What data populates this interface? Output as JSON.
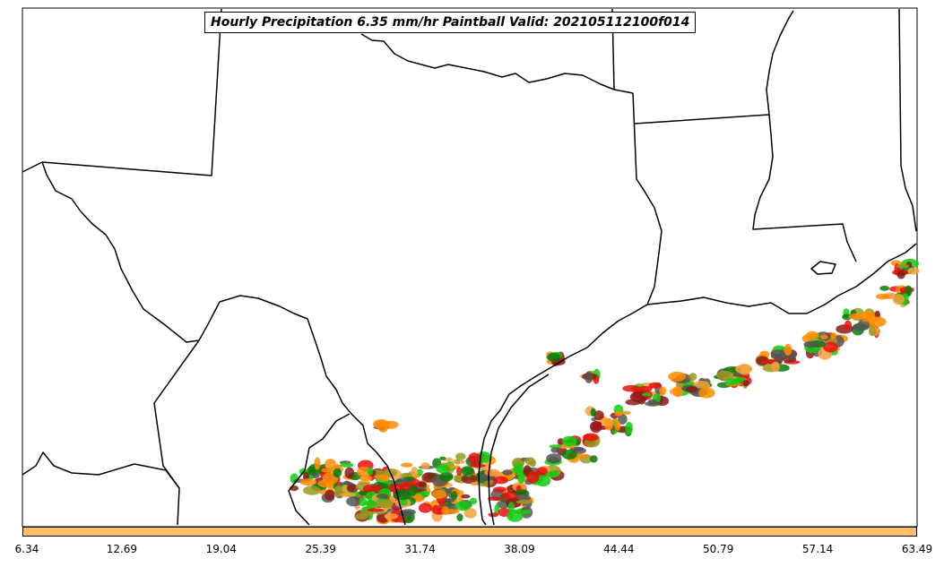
{
  "title": "Hourly Precipitation 6.35 mm/hr Paintball Valid: 202105112100f014",
  "colorbar": {
    "fill_color": "#ffc066",
    "ticks": [
      "6.34",
      "12.69",
      "19.04",
      "25.39",
      "31.74",
      "38.09",
      "44.44",
      "50.79",
      "57.14",
      "63.49"
    ]
  },
  "map": {
    "region": "Texas and Gulf Coast",
    "feature": "precipitation paintball contours",
    "member_colors": [
      "#e8110f",
      "#ff8c00",
      "#f4a13d",
      "#12cc12",
      "#0a7a0a",
      "#8b1a1a",
      "#9a9a20",
      "#555555"
    ]
  }
}
